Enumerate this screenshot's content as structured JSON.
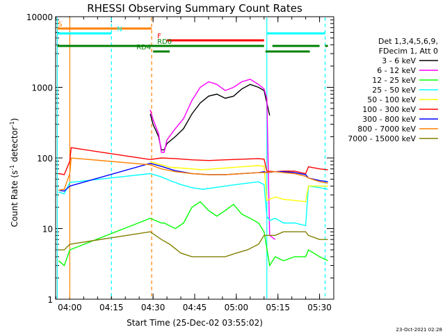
{
  "chart_data": {
    "type": "line",
    "title": "RHESSI Observing Summary Count Rates",
    "xlabel": "Start Time (25-Dec-02 03:55:02)",
    "ylabel_main": "Count Rate (s",
    "ylabel_sup1": "-1",
    "ylabel_mid": " detector",
    "ylabel_sup2": "-1",
    "ylabel_end": ")",
    "y_scale": "log",
    "ylim": [
      1,
      10000
    ],
    "xlim_minutes": [
      -5,
      33
    ],
    "x_ticks": [
      {
        "label": "04:00",
        "min": 0
      },
      {
        "label": "04:15",
        "min": 15
      },
      {
        "label": "04:30",
        "min": 30
      },
      {
        "label": "04:45",
        "min": 45
      },
      {
        "label": "05:00",
        "min": 60
      },
      {
        "label": "05:15",
        "min": 75
      },
      {
        "label": "05:30",
        "min": 90
      }
    ],
    "y_ticks": [
      {
        "label": "1",
        "value": 1
      },
      {
        "label": "10",
        "value": 10
      },
      {
        "label": "100",
        "value": 100
      },
      {
        "label": "1000",
        "value": 1000
      },
      {
        "label": "10000",
        "value": 10000
      }
    ],
    "legend_header": [
      "Det 1,3,4,5,6,9,",
      "FDecim 1, Att 0"
    ],
    "legend_position": "right",
    "series": [
      {
        "name": "3 - 6 keV",
        "color": "#000000",
        "points": [
          [
            29,
            420
          ],
          [
            30,
            300
          ],
          [
            32,
            200
          ],
          [
            33,
            130
          ],
          [
            34,
            130
          ],
          [
            35,
            160
          ],
          [
            38,
            200
          ],
          [
            41,
            260
          ],
          [
            44,
            420
          ],
          [
            47,
            600
          ],
          [
            50,
            750
          ],
          [
            53,
            800
          ],
          [
            56,
            700
          ],
          [
            59,
            750
          ],
          [
            62,
            950
          ],
          [
            65,
            1100
          ],
          [
            68,
            1000
          ],
          [
            70,
            900
          ],
          [
            71,
            600
          ],
          [
            72,
            400
          ]
        ]
      },
      {
        "name": "6 - 12 keV",
        "color": "#ff00ff",
        "points": [
          [
            29,
            480
          ],
          [
            30,
            350
          ],
          [
            32,
            220
          ],
          [
            33,
            120
          ],
          [
            34,
            120
          ],
          [
            35,
            180
          ],
          [
            38,
            260
          ],
          [
            41,
            360
          ],
          [
            44,
            650
          ],
          [
            47,
            1000
          ],
          [
            50,
            1200
          ],
          [
            53,
            1100
          ],
          [
            56,
            900
          ],
          [
            59,
            1000
          ],
          [
            62,
            1200
          ],
          [
            65,
            1300
          ],
          [
            68,
            1100
          ],
          [
            70,
            950
          ],
          [
            71,
            700
          ],
          [
            72,
            8
          ],
          [
            74,
            7
          ]
        ]
      },
      {
        "name": "12 - 25 keV",
        "color": "#00ff00",
        "points": [
          [
            -4,
            3.5
          ],
          [
            -2,
            3
          ],
          [
            0,
            5
          ],
          [
            29,
            14
          ],
          [
            33,
            12
          ],
          [
            34,
            12
          ],
          [
            38,
            10
          ],
          [
            41,
            12
          ],
          [
            44,
            20
          ],
          [
            47,
            24
          ],
          [
            50,
            18
          ],
          [
            53,
            15
          ],
          [
            56,
            18
          ],
          [
            59,
            22
          ],
          [
            62,
            16
          ],
          [
            65,
            14
          ],
          [
            68,
            12
          ],
          [
            70,
            9
          ],
          [
            72,
            3
          ],
          [
            74,
            4
          ],
          [
            77,
            3.5
          ],
          [
            81,
            4
          ],
          [
            85,
            4
          ],
          [
            86,
            5
          ],
          [
            90,
            4
          ],
          [
            93,
            3.5
          ]
        ]
      },
      {
        "name": "25 - 50 keV",
        "color": "#00ffff",
        "points": [
          [
            -4,
            33
          ],
          [
            -2,
            31
          ],
          [
            0,
            45
          ],
          [
            29,
            60
          ],
          [
            33,
            54
          ],
          [
            36,
            48
          ],
          [
            40,
            42
          ],
          [
            44,
            38
          ],
          [
            48,
            36
          ],
          [
            52,
            38
          ],
          [
            56,
            40
          ],
          [
            60,
            42
          ],
          [
            64,
            44
          ],
          [
            68,
            46
          ],
          [
            70,
            42
          ],
          [
            71,
            15
          ],
          [
            72,
            13
          ],
          [
            74,
            14
          ],
          [
            77,
            12
          ],
          [
            81,
            12
          ],
          [
            85,
            11
          ],
          [
            86,
            40
          ],
          [
            90,
            38
          ],
          [
            93,
            36
          ]
        ]
      },
      {
        "name": "50 - 100 keV",
        "color": "#ffff00",
        "points": [
          [
            29,
            88
          ],
          [
            33,
            80
          ],
          [
            36,
            74
          ],
          [
            40,
            72
          ],
          [
            44,
            70
          ],
          [
            48,
            68
          ],
          [
            52,
            70
          ],
          [
            56,
            72
          ],
          [
            60,
            74
          ],
          [
            64,
            76
          ],
          [
            68,
            78
          ],
          [
            70,
            76
          ],
          [
            71,
            25
          ],
          [
            74,
            28
          ],
          [
            77,
            26
          ],
          [
            81,
            25
          ],
          [
            85,
            24
          ],
          [
            86,
            40
          ],
          [
            93,
            40
          ]
        ]
      },
      {
        "name": "100 - 300 keV",
        "color": "#ff0000",
        "points": [
          [
            -4,
            60
          ],
          [
            -2,
            58
          ],
          [
            0,
            90
          ],
          [
            0.5,
            140
          ],
          [
            29,
            95
          ],
          [
            33,
            100
          ],
          [
            38,
            98
          ],
          [
            44,
            94
          ],
          [
            50,
            92
          ],
          [
            56,
            94
          ],
          [
            62,
            96
          ],
          [
            68,
            98
          ],
          [
            70,
            96
          ],
          [
            71,
            65
          ],
          [
            74,
            64
          ],
          [
            77,
            65
          ],
          [
            81,
            65
          ],
          [
            85,
            60
          ],
          [
            86,
            75
          ],
          [
            90,
            70
          ],
          [
            93,
            68
          ]
        ]
      },
      {
        "name": "300 - 800 keV",
        "color": "#0000ff",
        "points": [
          [
            -4,
            35
          ],
          [
            -2,
            34
          ],
          [
            0,
            40
          ],
          [
            29,
            84
          ],
          [
            33,
            76
          ],
          [
            38,
            66
          ],
          [
            44,
            60
          ],
          [
            50,
            58
          ],
          [
            56,
            58
          ],
          [
            62,
            60
          ],
          [
            68,
            62
          ],
          [
            70,
            64
          ],
          [
            71,
            62
          ],
          [
            74,
            64
          ],
          [
            77,
            64
          ],
          [
            81,
            62
          ],
          [
            85,
            58
          ],
          [
            86,
            52
          ],
          [
            90,
            48
          ],
          [
            93,
            46
          ]
        ]
      },
      {
        "name": "800 - 7000 keV",
        "color": "#ff8000",
        "points": [
          [
            -4,
            35
          ],
          [
            -2,
            36
          ],
          [
            0,
            60
          ],
          [
            0.5,
            100
          ],
          [
            29,
            80
          ],
          [
            33,
            70
          ],
          [
            38,
            64
          ],
          [
            44,
            60
          ],
          [
            50,
            58
          ],
          [
            56,
            58
          ],
          [
            62,
            60
          ],
          [
            68,
            62
          ],
          [
            70,
            62
          ],
          [
            74,
            64
          ],
          [
            77,
            62
          ],
          [
            81,
            60
          ],
          [
            85,
            55
          ],
          [
            86,
            52
          ],
          [
            90,
            46
          ],
          [
            93,
            44
          ]
        ]
      },
      {
        "name": "7000 - 15000 keV",
        "color": "#808000",
        "points": [
          [
            -4,
            5
          ],
          [
            -2,
            5
          ],
          [
            0,
            6
          ],
          [
            29,
            9
          ],
          [
            33,
            7
          ],
          [
            36,
            6
          ],
          [
            40,
            4.5
          ],
          [
            44,
            4
          ],
          [
            48,
            4
          ],
          [
            52,
            4
          ],
          [
            56,
            4
          ],
          [
            60,
            4.5
          ],
          [
            64,
            5
          ],
          [
            68,
            6
          ],
          [
            70,
            8
          ],
          [
            74,
            8
          ],
          [
            77,
            9
          ],
          [
            81,
            9
          ],
          [
            85,
            9
          ],
          [
            86,
            8
          ],
          [
            90,
            7
          ],
          [
            93,
            7
          ]
        ]
      }
    ],
    "flags": [
      {
        "label": "S",
        "color": "#ff8000",
        "label_side": "left",
        "segments": [
          [
            -2.5,
            29
          ]
        ],
        "level": 5
      }
    ],
    "state_bars": [
      {
        "label": "S",
        "color": "#ff8000",
        "level_y": 41,
        "segments": [
          [
            -4.5,
            29.5
          ]
        ],
        "label_min": -4.3
      },
      {
        "label": "N",
        "color": "#00ffff",
        "level_y": 48,
        "segments": [
          [
            -4.5,
            15
          ],
          [
            71,
            92
          ]
        ],
        "label_min": 17
      },
      {
        "label": "F",
        "color": "#ff0000",
        "level_y": 58,
        "segments": [
          [
            35,
            70
          ]
        ],
        "label_min": 31.5
      },
      {
        "label": "RD0",
        "color": "#008000",
        "level_y": 66,
        "segments": [
          [
            -4.5,
            70
          ],
          [
            73,
            90
          ],
          [
            92,
            93
          ]
        ],
        "label_min": 31.5
      },
      {
        "label": "RD4",
        "color": "#008000",
        "level_y": 74,
        "segments": [
          [
            30,
            36
          ],
          [
            70.5,
            86.5
          ]
        ],
        "label_min": 24
      }
    ],
    "vlines": [
      {
        "min": 0,
        "color": "#ff8000",
        "style": "solid"
      },
      {
        "min": -4.5,
        "color": "#00ffff",
        "style": "solid"
      },
      {
        "min": 15,
        "color": "#00ffff",
        "style": "dashed"
      },
      {
        "min": 29.5,
        "color": "#ff8000",
        "style": "dashed"
      },
      {
        "min": 71,
        "color": "#00ffff",
        "style": "solid"
      },
      {
        "min": 92,
        "color": "#00ffff",
        "style": "dashed"
      }
    ],
    "timestamp": "23-Oct-2021 02:28"
  }
}
